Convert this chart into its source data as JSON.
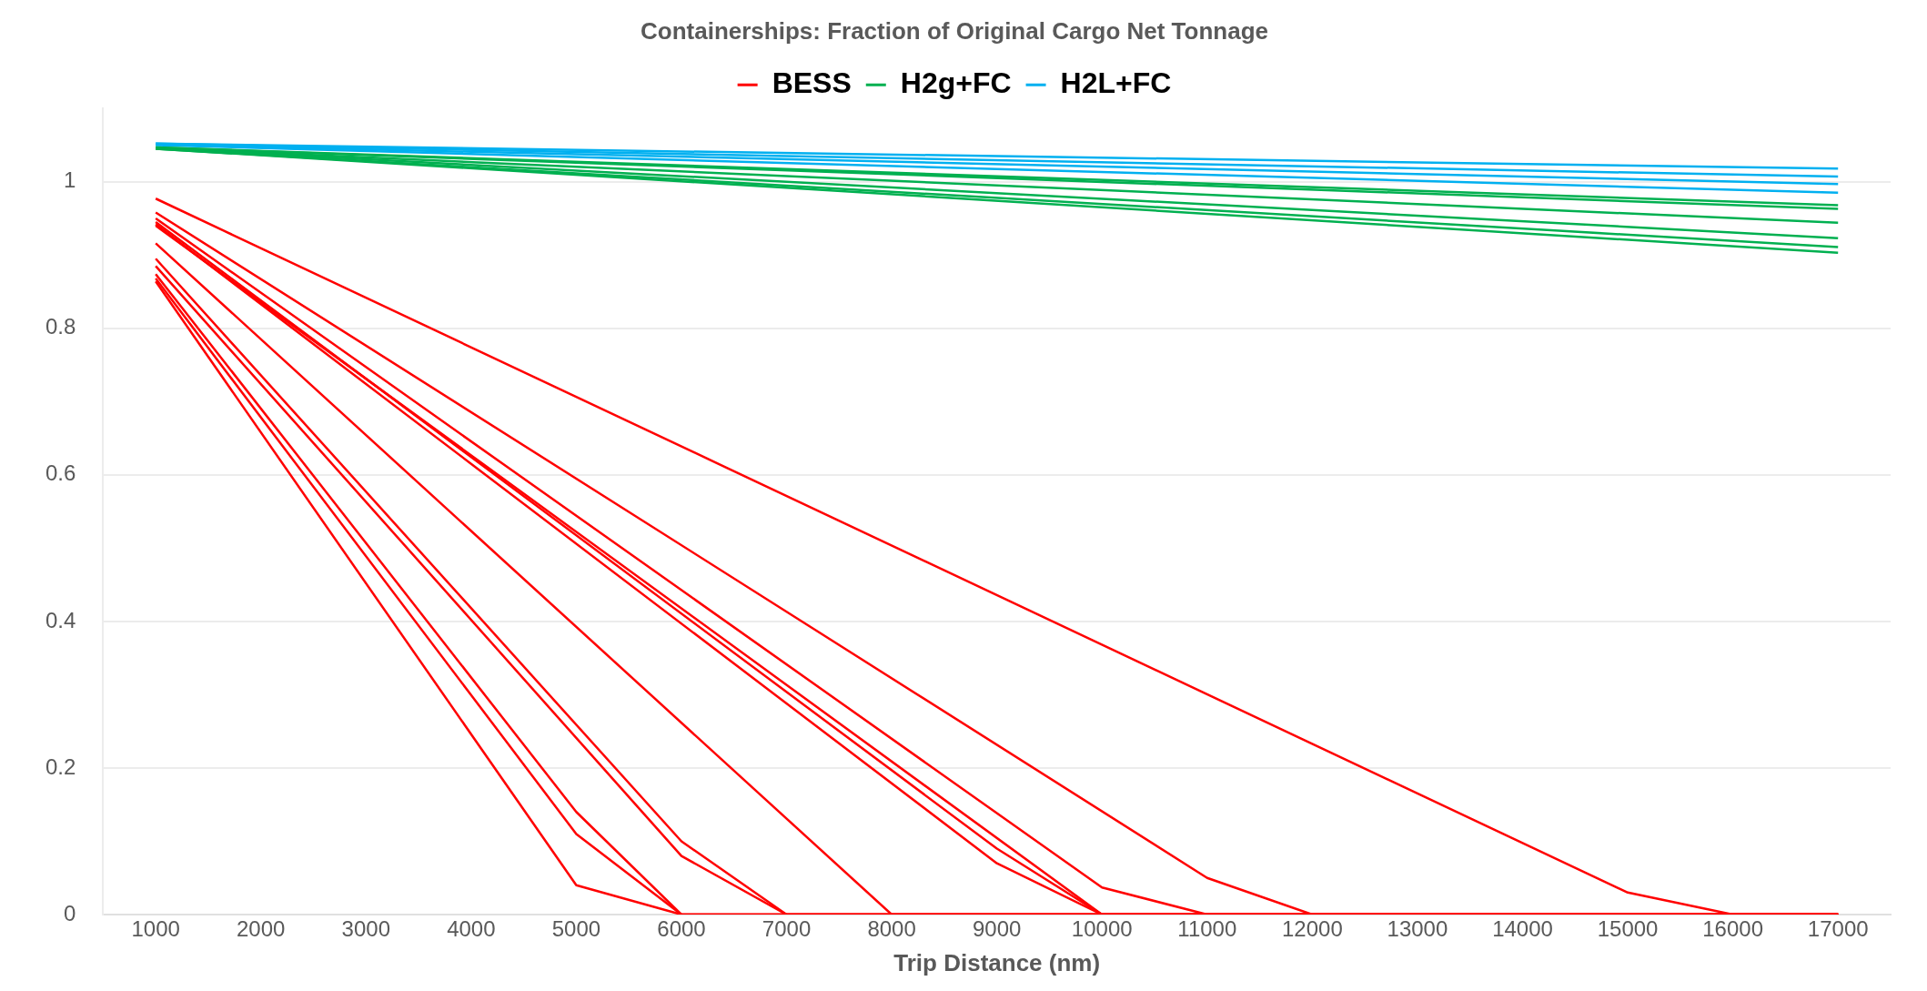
{
  "chart_data": {
    "type": "line",
    "title": "Containerships: Fraction of Original Cargo Net Tonnage",
    "xlabel": "Trip Distance (nm)",
    "xlim": [
      500,
      17500
    ],
    "xticks": [
      1000,
      2000,
      3000,
      4000,
      5000,
      6000,
      7000,
      8000,
      9000,
      10000,
      11000,
      12000,
      13000,
      14000,
      15000,
      16000,
      17000
    ],
    "ylim": [
      0,
      1.1
    ],
    "yticks": [
      0,
      0.2,
      0.4,
      0.6,
      0.8,
      1
    ],
    "grid": "y",
    "legend": "top",
    "marker": "none",
    "line_style": "solid",
    "series": [
      {
        "name": "BESS",
        "color": "#ff0000",
        "x": [
          1000,
          15000,
          16000,
          17000
        ],
        "values": [
          0.977,
          0.03,
          0,
          0
        ]
      },
      {
        "color": "#ff0000",
        "x": [
          1000,
          11000,
          12000,
          17000
        ],
        "values": [
          0.958,
          0.05,
          0,
          0
        ]
      },
      {
        "color": "#ff0000",
        "x": [
          1000,
          10000,
          11000,
          17000
        ],
        "values": [
          0.95,
          0.037,
          0,
          0
        ]
      },
      {
        "color": "#ff0000",
        "x": [
          1000,
          9000,
          10000,
          17000
        ],
        "values": [
          0.945,
          0.09,
          0,
          0
        ]
      },
      {
        "color": "#ff0000",
        "x": [
          1000,
          9000,
          10000,
          17000
        ],
        "values": [
          0.942,
          0.07,
          0,
          0
        ]
      },
      {
        "color": "#ff0000",
        "x": [
          1000,
          10000,
          17000
        ],
        "values": [
          0.94,
          0,
          0
        ]
      },
      {
        "color": "#ff0000",
        "x": [
          1000,
          8000,
          17000
        ],
        "values": [
          0.916,
          0,
          0
        ]
      },
      {
        "color": "#ff0000",
        "x": [
          1000,
          6000,
          7000,
          17000
        ],
        "values": [
          0.895,
          0.1,
          0,
          0
        ]
      },
      {
        "color": "#ff0000",
        "x": [
          1000,
          6000,
          7000,
          17000
        ],
        "values": [
          0.885,
          0.08,
          0,
          0
        ]
      },
      {
        "color": "#ff0000",
        "x": [
          1000,
          5000,
          6000,
          17000
        ],
        "values": [
          0.874,
          0.14,
          0,
          0
        ]
      },
      {
        "color": "#ff0000",
        "x": [
          1000,
          5000,
          6000,
          17000
        ],
        "values": [
          0.868,
          0.11,
          0,
          0
        ]
      },
      {
        "color": "#ff0000",
        "x": [
          1000,
          5000,
          6000,
          17000
        ],
        "values": [
          0.864,
          0.04,
          0,
          0
        ]
      },
      {
        "name": "H2g+FC",
        "color": "#00b050",
        "x": [
          1000,
          17000
        ],
        "values": [
          1.047,
          0.968
        ]
      },
      {
        "color": "#00b050",
        "x": [
          1000,
          17000
        ],
        "values": [
          1.047,
          0.963
        ]
      },
      {
        "color": "#00b050",
        "x": [
          1000,
          17000
        ],
        "values": [
          1.046,
          0.944
        ]
      },
      {
        "color": "#00b050",
        "x": [
          1000,
          17000
        ],
        "values": [
          1.046,
          0.923
        ]
      },
      {
        "color": "#00b050",
        "x": [
          1000,
          17000
        ],
        "values": [
          1.045,
          0.911
        ]
      },
      {
        "color": "#00b050",
        "x": [
          1000,
          17000
        ],
        "values": [
          1.045,
          0.903
        ]
      },
      {
        "name": "H2L+FC",
        "color": "#00b0f0",
        "x": [
          1000,
          17000
        ],
        "values": [
          1.052,
          1.018
        ]
      },
      {
        "color": "#00b0f0",
        "x": [
          1000,
          17000
        ],
        "values": [
          1.052,
          1.007
        ]
      },
      {
        "color": "#00b0f0",
        "x": [
          1000,
          17000
        ],
        "values": [
          1.051,
          0.997
        ]
      },
      {
        "color": "#00b0f0",
        "x": [
          1000,
          17000
        ],
        "values": [
          1.05,
          0.985
        ]
      }
    ]
  }
}
